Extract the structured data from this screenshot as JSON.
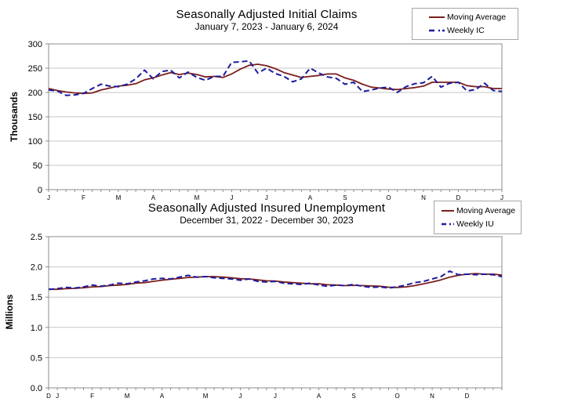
{
  "colors": {
    "moving_average": "#7b1e1e",
    "weekly": "#1c1c9e",
    "gridline": "#c6c6c6",
    "axis": "#8c8c8c",
    "text": "#000000",
    "legend_border": "#a6a6a6"
  },
  "charts": [
    {
      "title": "Seasonally Adjusted Initial Claims",
      "subtitle": "January 7, 2023 - January 6, 2024",
      "y_axis_label": "Thousands",
      "legend": [
        {
          "label": "Moving Average",
          "style": "solid"
        },
        {
          "label": "Weekly IC",
          "style": "dashed"
        }
      ]
    },
    {
      "title": "Seasonally Adjusted Insured Unemployment",
      "subtitle": "December 31, 2022 - December 30, 2023",
      "y_axis_label": "Millions",
      "legend": [
        {
          "label": "Moving Average",
          "style": "solid"
        },
        {
          "label": "Weekly IU",
          "style": "dashed"
        }
      ]
    }
  ],
  "chart_data": [
    {
      "type": "line",
      "title": "Seasonally Adjusted Initial Claims",
      "subtitle": "January 7, 2023 - January 6, 2024",
      "xlabel": "",
      "ylabel": "Thousands",
      "ylim": [
        0,
        300
      ],
      "yticks": [
        "0",
        "50",
        "100",
        "150",
        "200",
        "250",
        "300"
      ],
      "n_points": 53,
      "grid": "horizontal",
      "legend_position": "top-right",
      "month_labels": [
        {
          "label": "J",
          "week": 1
        },
        {
          "label": "F",
          "week": 5
        },
        {
          "label": "M",
          "week": 9
        },
        {
          "label": "A",
          "week": 13
        },
        {
          "label": "M",
          "week": 18
        },
        {
          "label": "J",
          "week": 22
        },
        {
          "label": "J",
          "week": 26
        },
        {
          "label": "A",
          "week": 31
        },
        {
          "label": "S",
          "week": 35
        },
        {
          "label": "O",
          "week": 40
        },
        {
          "label": "N",
          "week": 44
        },
        {
          "label": "D",
          "week": 48
        },
        {
          "label": "J",
          "week": 53
        }
      ],
      "series": [
        {
          "name": "Moving Average",
          "style": "solid",
          "values": [
            208,
            204,
            201,
            199,
            198,
            199,
            205,
            209,
            213,
            215,
            218,
            226,
            230,
            236,
            241,
            237,
            240,
            237,
            232,
            233,
            231,
            238,
            248,
            256,
            258,
            255,
            249,
            241,
            236,
            231,
            233,
            235,
            238,
            238,
            230,
            225,
            217,
            211,
            209,
            207,
            206,
            208,
            210,
            213,
            221,
            221,
            221,
            221,
            214,
            212,
            212,
            208,
            208
          ]
        },
        {
          "name": "Weekly IC",
          "style": "dashed",
          "values": [
            205,
            203,
            194,
            195,
            198,
            208,
            217,
            213,
            212,
            217,
            228,
            246,
            228,
            243,
            246,
            230,
            242,
            231,
            225,
            233,
            233,
            262,
            263,
            265,
            240,
            250,
            239,
            233,
            222,
            228,
            250,
            240,
            232,
            229,
            217,
            221,
            202,
            205,
            209,
            211,
            200,
            212,
            218,
            220,
            233,
            211,
            219,
            221,
            203,
            206,
            219,
            204,
            202
          ]
        }
      ]
    },
    {
      "type": "line",
      "title": "Seasonally Adjusted Insured Unemployment",
      "subtitle": "December 31, 2022 - December 30, 2023",
      "xlabel": "",
      "ylabel": "Millions",
      "ylim": [
        0,
        2.5
      ],
      "yticks": [
        "0.0",
        "0.5",
        "1.0",
        "1.5",
        "2.0",
        "2.5"
      ],
      "n_points": 53,
      "grid": "horizontal",
      "legend_position": "top-right",
      "month_labels": [
        {
          "label": "D",
          "week": 1
        },
        {
          "label": "J",
          "week": 2
        },
        {
          "label": "F",
          "week": 6
        },
        {
          "label": "M",
          "week": 10
        },
        {
          "label": "A",
          "week": 14
        },
        {
          "label": "M",
          "week": 19
        },
        {
          "label": "J",
          "week": 23
        },
        {
          "label": "J",
          "week": 27
        },
        {
          "label": "A",
          "week": 32
        },
        {
          "label": "S",
          "week": 36
        },
        {
          "label": "O",
          "week": 41
        },
        {
          "label": "N",
          "week": 45
        },
        {
          "label": "D",
          "week": 49
        }
      ],
      "series": [
        {
          "name": "Moving Average",
          "style": "solid",
          "values": [
            1.63,
            1.63,
            1.64,
            1.645,
            1.655,
            1.67,
            1.675,
            1.69,
            1.7,
            1.71,
            1.73,
            1.74,
            1.76,
            1.78,
            1.795,
            1.81,
            1.825,
            1.83,
            1.84,
            1.84,
            1.83,
            1.82,
            1.805,
            1.8,
            1.785,
            1.77,
            1.765,
            1.75,
            1.74,
            1.73,
            1.72,
            1.72,
            1.705,
            1.7,
            1.69,
            1.695,
            1.69,
            1.685,
            1.68,
            1.665,
            1.66,
            1.67,
            1.69,
            1.72,
            1.75,
            1.785,
            1.83,
            1.86,
            1.88,
            1.89,
            1.88,
            1.88,
            1.865
          ]
        },
        {
          "name": "Weekly IU",
          "style": "dashed",
          "values": [
            1.63,
            1.64,
            1.66,
            1.65,
            1.67,
            1.7,
            1.68,
            1.7,
            1.73,
            1.72,
            1.75,
            1.77,
            1.8,
            1.81,
            1.8,
            1.83,
            1.86,
            1.83,
            1.84,
            1.82,
            1.81,
            1.8,
            1.78,
            1.8,
            1.76,
            1.75,
            1.76,
            1.73,
            1.72,
            1.71,
            1.73,
            1.7,
            1.68,
            1.7,
            1.69,
            1.71,
            1.68,
            1.66,
            1.67,
            1.65,
            1.67,
            1.7,
            1.74,
            1.76,
            1.8,
            1.84,
            1.93,
            1.87,
            1.88,
            1.87,
            1.88,
            1.87,
            1.84
          ]
        }
      ]
    }
  ]
}
